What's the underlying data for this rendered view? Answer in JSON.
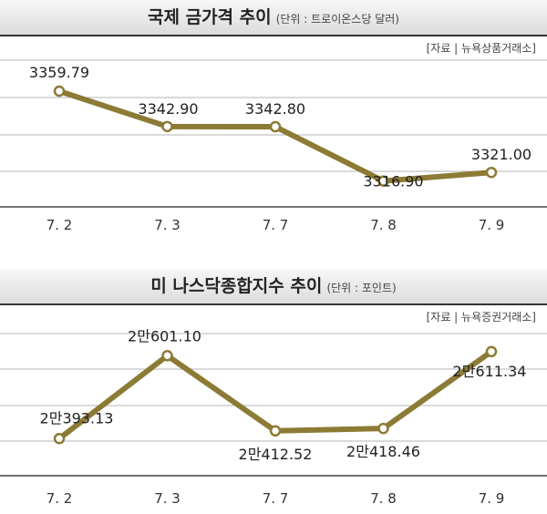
{
  "chart_data": [
    {
      "type": "line",
      "title": "국제 금가격 추이",
      "unit_note": "(단위 : 트로이온스당 달러)",
      "source": "[자료 | 뉴욕상품거래소]",
      "categories": [
        "7. 2",
        "7. 3",
        "7. 7",
        "7. 8",
        "7. 9"
      ],
      "values": [
        3359.79,
        3342.9,
        3342.8,
        3316.9,
        3321.0
      ],
      "value_labels": [
        "3359.79",
        "3342.90",
        "3342.80",
        "3316.90",
        "3321.00"
      ],
      "ylim": [
        3305,
        3375
      ],
      "line_color": "#8c7a35",
      "grid": true
    },
    {
      "type": "line",
      "title": "미 나스닥종합지수 추이",
      "unit_note": "(단위 : 포인트)",
      "source": "[자료 | 뉴욕증권거래소]",
      "categories": [
        "7. 2",
        "7. 3",
        "7. 7",
        "7. 8",
        "7. 9"
      ],
      "values": [
        20393.13,
        20601.1,
        20412.52,
        20418.46,
        20611.34
      ],
      "value_labels": [
        "2만393.13",
        "2만601.10",
        "2만412.52",
        "2만418.46",
        "2만611.34"
      ],
      "ylim": [
        20300,
        20700
      ],
      "line_color": "#8c7a35",
      "grid": true
    }
  ]
}
